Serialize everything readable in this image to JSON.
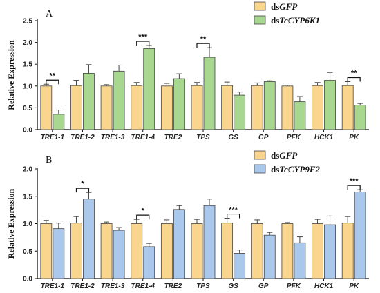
{
  "chart_data": [
    {
      "type": "bar",
      "panel_label": "A",
      "ylabel": "Relative Expression",
      "ylim": [
        0,
        2.5
      ],
      "yticks": [
        "0.0",
        "0.5",
        "1.0",
        "1.5",
        "2.0",
        "2.5"
      ],
      "categories": [
        "TRE1-1",
        "TRE1-2",
        "TRE1-3",
        "TRE1-4",
        "TRE2",
        "TPS",
        "GS",
        "GP",
        "PFK",
        "HCK1",
        "PK"
      ],
      "series": [
        {
          "name": "dsGFP",
          "legend_prefix": "ds",
          "legend_italic": "GFP",
          "color": "#fad58e",
          "values": [
            1.0,
            1.01,
            1.0,
            1.01,
            1.0,
            1.01,
            1.01,
            1.01,
            1.0,
            1.01,
            1.01
          ],
          "errors": [
            0.04,
            0.12,
            0.03,
            0.07,
            0.06,
            0.07,
            0.08,
            0.06,
            0.02,
            0.07,
            0.09
          ]
        },
        {
          "name": "dsTcCYP6K1",
          "legend_prefix": "ds",
          "legend_italic": "TcCYP6K1",
          "color": "#a8d890",
          "values": [
            0.35,
            1.29,
            1.34,
            1.86,
            1.17,
            1.66,
            0.79,
            1.1,
            0.64,
            1.13,
            0.56
          ],
          "errors": [
            0.1,
            0.2,
            0.14,
            0.07,
            0.11,
            0.22,
            0.07,
            0.02,
            0.12,
            0.18,
            0.04
          ]
        }
      ],
      "significance": [
        {
          "category": "TRE1-1",
          "label": "**"
        },
        {
          "category": "TRE1-4",
          "label": "***"
        },
        {
          "category": "TPS",
          "label": "**"
        },
        {
          "category": "PK",
          "label": "**"
        }
      ]
    },
    {
      "type": "bar",
      "panel_label": "B",
      "ylabel": "Relative Expression",
      "ylim": [
        0,
        2.0
      ],
      "yticks": [
        "0.0",
        "0.5",
        "1.0",
        "1.5",
        "2.0"
      ],
      "categories": [
        "TRE1-1",
        "TRE1-2",
        "TRE1-3",
        "TRE1-4",
        "TRE2",
        "TPS",
        "GS",
        "GP",
        "PFK",
        "HCK1",
        "PK"
      ],
      "series": [
        {
          "name": "dsGFP",
          "legend_prefix": "ds",
          "legend_italic": "GFP",
          "color": "#fad58e",
          "values": [
            1.0,
            1.01,
            1.0,
            1.0,
            1.0,
            1.0,
            1.01,
            1.0,
            1.0,
            1.0,
            1.01
          ],
          "errors": [
            0.06,
            0.12,
            0.03,
            0.08,
            0.07,
            0.08,
            0.09,
            0.07,
            0.02,
            0.08,
            0.12
          ]
        },
        {
          "name": "dsTcCYP9F2",
          "legend_prefix": "ds",
          "legend_italic": "TcCYP9F2",
          "color": "#a9c8ec",
          "values": [
            0.91,
            1.45,
            0.88,
            0.58,
            1.26,
            1.33,
            0.46,
            0.79,
            0.65,
            0.98,
            1.58
          ],
          "errors": [
            0.1,
            0.12,
            0.05,
            0.06,
            0.07,
            0.12,
            0.06,
            0.05,
            0.11,
            0.16,
            0.04
          ]
        }
      ],
      "significance": [
        {
          "category": "TRE1-2",
          "label": "*"
        },
        {
          "category": "TRE1-4",
          "label": "*"
        },
        {
          "category": "GS",
          "label": "***"
        },
        {
          "category": "PK",
          "label": "***"
        }
      ]
    }
  ]
}
